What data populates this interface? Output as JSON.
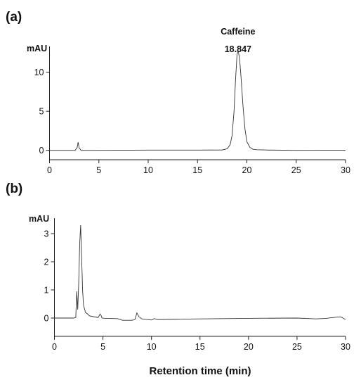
{
  "chart_data": [
    {
      "type": "line",
      "panel_label": "(a)",
      "ylabel": "mAU",
      "xlabel": "",
      "xlim": [
        0,
        30
      ],
      "ylim": [
        -1.2,
        13.3
      ],
      "xticks": [
        0,
        5,
        10,
        15,
        20,
        25,
        30
      ],
      "yticks": [
        0,
        5,
        10
      ],
      "annotation": {
        "name": "Caffeine",
        "retention": "18.847",
        "x": 19.1
      },
      "series": [
        {
          "x": [
            0,
            2.6,
            2.8,
            2.9,
            3.0,
            3.2,
            5,
            10,
            15,
            17.5,
            18.0,
            18.3,
            18.5,
            18.7,
            18.85,
            19.0,
            19.1,
            19.25,
            19.4,
            19.6,
            19.8,
            20.0,
            20.3,
            20.6,
            21,
            22,
            25,
            30
          ],
          "y": [
            0.0,
            0.0,
            0.35,
            1.05,
            0.3,
            0.0,
            0.0,
            0.03,
            0.03,
            0.05,
            0.2,
            0.7,
            1.9,
            5.0,
            9.0,
            12.2,
            12.8,
            11.9,
            9.5,
            5.8,
            2.8,
            1.1,
            0.4,
            0.15,
            0.08,
            0.04,
            0.0,
            0.02
          ]
        }
      ]
    },
    {
      "type": "line",
      "panel_label": "(b)",
      "ylabel": "mAU",
      "xlabel": "Retention time (min)",
      "xlim": [
        0,
        30
      ],
      "ylim": [
        -0.65,
        3.55
      ],
      "xticks": [
        0,
        5,
        10,
        15,
        20,
        25,
        30
      ],
      "yticks": [
        0,
        1,
        2,
        3
      ],
      "series": [
        {
          "x": [
            0,
            2.0,
            2.2,
            2.3,
            2.4,
            2.5,
            2.6,
            2.7,
            2.8,
            2.9,
            3.0,
            3.2,
            3.4,
            3.6,
            4.0,
            4.5,
            4.7,
            4.8,
            4.9,
            5.2,
            6.5,
            7.0,
            8.0,
            8.3,
            8.5,
            8.7,
            9.0,
            10.0,
            10.3,
            10.6,
            11,
            15,
            20,
            25,
            27,
            28,
            29,
            29.5,
            30
          ],
          "y": [
            0.0,
            0.0,
            0.02,
            0.95,
            0.3,
            1.2,
            2.6,
            3.3,
            2.2,
            1.0,
            0.45,
            0.2,
            0.15,
            0.08,
            0.05,
            0.02,
            0.14,
            0.1,
            0.0,
            -0.01,
            -0.02,
            -0.08,
            -0.08,
            -0.05,
            0.18,
            0.05,
            -0.03,
            -0.07,
            -0.02,
            -0.05,
            -0.05,
            -0.03,
            -0.01,
            0.0,
            -0.03,
            -0.01,
            0.03,
            0.04,
            -0.05
          ]
        }
      ]
    }
  ]
}
